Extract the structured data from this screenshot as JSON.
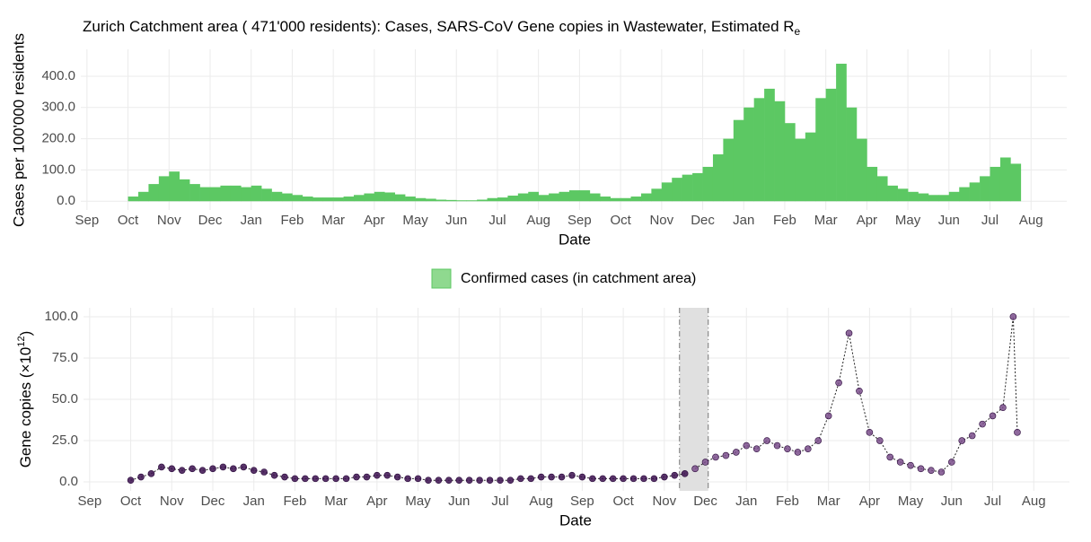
{
  "chart_data": [
    {
      "type": "bar",
      "title": "Zurich Catchment area ( 471'000 residents): Cases, SARS-CoV Gene copies in Wastewater, Estimated R",
      "title_subscript": "e",
      "xlabel": "Date",
      "ylabel": "Cases per 100'000 residents",
      "legend": "bottom",
      "grid": true,
      "xlim": [
        -0.15,
        23.87
      ],
      "ylim": [
        -28,
        486
      ],
      "xticks": [
        {
          "value": 0,
          "label": "Sep"
        },
        {
          "value": 1,
          "label": "Oct"
        },
        {
          "value": 2,
          "label": "Nov"
        },
        {
          "value": 3,
          "label": "Dec"
        },
        {
          "value": 4,
          "label": "Jan"
        },
        {
          "value": 5,
          "label": "Feb"
        },
        {
          "value": 6,
          "label": "Mar"
        },
        {
          "value": 7,
          "label": "Apr"
        },
        {
          "value": 8,
          "label": "May"
        },
        {
          "value": 9,
          "label": "Jun"
        },
        {
          "value": 10,
          "label": "Jul"
        },
        {
          "value": 11,
          "label": "Aug"
        },
        {
          "value": 12,
          "label": "Sep"
        },
        {
          "value": 13,
          "label": "Oct"
        },
        {
          "value": 14,
          "label": "Nov"
        },
        {
          "value": 15,
          "label": "Dec"
        },
        {
          "value": 16,
          "label": "Jan"
        },
        {
          "value": 17,
          "label": "Feb"
        },
        {
          "value": 18,
          "label": "Mar"
        },
        {
          "value": 19,
          "label": "Apr"
        },
        {
          "value": 20,
          "label": "May"
        },
        {
          "value": 21,
          "label": "Jun"
        },
        {
          "value": 22,
          "label": "Jul"
        },
        {
          "value": 23,
          "label": "Aug"
        }
      ],
      "yticks": [
        {
          "value": 0,
          "label": "0.0"
        },
        {
          "value": 100,
          "label": "100.0"
        },
        {
          "value": 200,
          "label": "200.0"
        },
        {
          "value": 300,
          "label": "300.0"
        },
        {
          "value": 400,
          "label": "400.0"
        }
      ],
      "bar_width": 0.25,
      "series": [
        {
          "name": "Confirmed cases (in catchment area)",
          "color": "#5cc863",
          "x": [
            1,
            1.25,
            1.5,
            1.75,
            2,
            2.25,
            2.5,
            2.75,
            3,
            3.25,
            3.5,
            3.75,
            4,
            4.25,
            4.5,
            4.75,
            5,
            5.25,
            5.5,
            5.75,
            6,
            6.25,
            6.5,
            6.75,
            7,
            7.25,
            7.5,
            7.75,
            8,
            8.25,
            8.5,
            8.75,
            9,
            9.25,
            9.5,
            9.75,
            10,
            10.25,
            10.5,
            10.75,
            11,
            11.25,
            11.5,
            11.75,
            12,
            12.25,
            12.5,
            12.75,
            13,
            13.25,
            13.5,
            13.75,
            14,
            14.25,
            14.5,
            14.75,
            15,
            15.25,
            15.5,
            15.75,
            16,
            16.25,
            16.5,
            16.75,
            17,
            17.25,
            17.5,
            17.75,
            18,
            18.25,
            18.5,
            18.75,
            19,
            19.25,
            19.5,
            19.75,
            20,
            20.25,
            20.5,
            20.75,
            21,
            21.25,
            21.5,
            21.75,
            22,
            22.25,
            22.5
          ],
          "values": [
            15,
            30,
            55,
            80,
            95,
            70,
            55,
            45,
            45,
            50,
            50,
            45,
            50,
            40,
            30,
            25,
            20,
            15,
            12,
            12,
            12,
            15,
            20,
            25,
            30,
            28,
            22,
            15,
            10,
            8,
            5,
            4,
            3,
            3,
            5,
            10,
            12,
            18,
            25,
            30,
            20,
            25,
            30,
            35,
            35,
            25,
            15,
            10,
            10,
            15,
            25,
            40,
            60,
            75,
            85,
            90,
            110,
            150,
            200,
            260,
            300,
            330,
            360,
            320,
            250,
            200,
            220,
            330,
            360,
            440,
            300,
            200,
            110,
            80,
            50,
            40,
            30,
            25,
            20,
            20,
            30,
            45,
            60,
            80,
            110,
            140,
            120
          ]
        }
      ]
    },
    {
      "type": "scatter",
      "xlabel": "Date",
      "ylabel": "Gene copies (×10",
      "ylabel_sup": "12",
      "ylabel_end": ")",
      "grid": true,
      "shade": [
        14.37,
        15.07
      ],
      "xlim": [
        -0.15,
        23.87
      ],
      "ylim": [
        -5.4,
        105.4
      ],
      "xticks": [
        {
          "value": 0,
          "label": "Sep"
        },
        {
          "value": 1,
          "label": "Oct"
        },
        {
          "value": 2,
          "label": "Nov"
        },
        {
          "value": 3,
          "label": "Dec"
        },
        {
          "value": 4,
          "label": "Jan"
        },
        {
          "value": 5,
          "label": "Feb"
        },
        {
          "value": 6,
          "label": "Mar"
        },
        {
          "value": 7,
          "label": "Apr"
        },
        {
          "value": 8,
          "label": "May"
        },
        {
          "value": 9,
          "label": "Jun"
        },
        {
          "value": 10,
          "label": "Jul"
        },
        {
          "value": 11,
          "label": "Aug"
        },
        {
          "value": 12,
          "label": "Sep"
        },
        {
          "value": 13,
          "label": "Oct"
        },
        {
          "value": 14,
          "label": "Nov"
        },
        {
          "value": 15,
          "label": "Dec"
        },
        {
          "value": 16,
          "label": "Jan"
        },
        {
          "value": 17,
          "label": "Feb"
        },
        {
          "value": 18,
          "label": "Mar"
        },
        {
          "value": 19,
          "label": "Apr"
        },
        {
          "value": 20,
          "label": "May"
        },
        {
          "value": 21,
          "label": "Jun"
        },
        {
          "value": 22,
          "label": "Jul"
        },
        {
          "value": 23,
          "label": "Aug"
        }
      ],
      "yticks": [
        {
          "value": 0,
          "label": "0.0"
        },
        {
          "value": 25,
          "label": "25.0"
        },
        {
          "value": 50,
          "label": "50.0"
        },
        {
          "value": 75,
          "label": "75.0"
        },
        {
          "value": 100,
          "label": "100.0"
        }
      ],
      "series": [
        {
          "color": "#3b0f4f",
          "x": [
            1,
            1.25,
            1.5,
            1.75,
            2,
            2.25,
            2.5,
            2.75,
            3,
            3.25,
            3.5,
            3.75,
            4,
            4.25,
            4.5,
            4.75,
            5,
            5.25,
            5.5,
            5.75,
            6,
            6.25,
            6.5,
            6.75,
            7,
            7.25,
            7.5,
            7.75,
            8,
            8.25,
            8.5,
            8.75,
            9,
            9.25,
            9.5,
            9.75,
            10,
            10.25,
            10.5,
            10.75,
            11,
            11.25,
            11.5,
            11.75,
            12,
            12.25,
            12.5,
            12.75,
            13,
            13.25,
            13.5,
            13.75,
            14,
            14.25,
            14.5
          ],
          "values": [
            1,
            3,
            5,
            9,
            8,
            7,
            8,
            7,
            8,
            9,
            8,
            9,
            7,
            6,
            4,
            3,
            2,
            2,
            2,
            2,
            2,
            2,
            3,
            3,
            4,
            4,
            3,
            2,
            2,
            1,
            1,
            1,
            1,
            1,
            1,
            1,
            1,
            1,
            2,
            2,
            3,
            3,
            3,
            4,
            3,
            2,
            2,
            2,
            2,
            2,
            2,
            2,
            3,
            4,
            5
          ]
        },
        {
          "color": "#7b4f8c",
          "x": [
            14.75,
            15,
            15.25,
            15.5,
            15.75,
            16,
            16.25,
            16.5,
            16.75,
            17,
            17.25,
            17.5,
            17.75,
            18,
            18.25,
            18.5,
            18.75,
            19,
            19.25,
            19.5,
            19.75,
            20,
            20.25,
            20.5,
            20.75,
            21,
            21.25,
            21.5,
            21.75,
            22,
            22.25,
            22.5,
            22.6
          ],
          "values": [
            8,
            12,
            15,
            16,
            18,
            22,
            20,
            25,
            22,
            20,
            18,
            20,
            25,
            40,
            60,
            90,
            55,
            30,
            25,
            15,
            12,
            10,
            8,
            7,
            6,
            12,
            25,
            28,
            35,
            40,
            45,
            100,
            30
          ]
        }
      ]
    }
  ]
}
